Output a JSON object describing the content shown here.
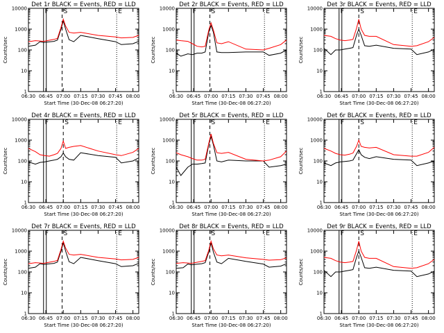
{
  "colors": {
    "events": "#000000",
    "lld": "#ff0000",
    "background": "#ffffff"
  },
  "common": {
    "xlabel": "Start Time (30-Dec-08 06:27:20)",
    "ylabel": "Counts/sec",
    "x_tick_labels": [
      "06:30",
      "06:45",
      "07:00",
      "07:15",
      "07:30",
      "07:45",
      "08:00"
    ],
    "y_tick_labels": [
      "1",
      "10",
      "100",
      "1000",
      "10000"
    ],
    "markers": [
      "F",
      "S",
      "E"
    ]
  },
  "chart_data": [
    {
      "type": "line",
      "title": "Det 1r BLACK = Events, RED = LLD",
      "xlim": [
        "06:30",
        "08:05"
      ],
      "ylim": [
        1,
        10000
      ],
      "yscale": "log",
      "series": [
        {
          "name": "Events",
          "x": [
            "06:30",
            "06:36",
            "06:40",
            "06:43",
            "06:46",
            "06:52",
            "06:55",
            "06:58",
            "07:00",
            "07:02",
            "07:05",
            "07:09",
            "07:15",
            "07:30",
            "07:45",
            "07:50",
            "08:00",
            "08:05"
          ],
          "values": [
            150,
            170,
            250,
            230,
            240,
            260,
            300,
            1000,
            2500,
            1000,
            310,
            250,
            500,
            350,
            250,
            180,
            200,
            260
          ]
        },
        {
          "name": "LLD",
          "x": [
            "06:30",
            "06:36",
            "06:40",
            "06:43",
            "06:46",
            "06:52",
            "06:55",
            "06:58",
            "07:00",
            "07:02",
            "07:05",
            "07:09",
            "07:15",
            "07:30",
            "07:45",
            "07:50",
            "08:00",
            "08:05"
          ],
          "values": [
            250,
            280,
            270,
            260,
            280,
            320,
            360,
            1200,
            3000,
            1400,
            700,
            650,
            700,
            500,
            420,
            380,
            400,
            500
          ]
        }
      ],
      "markers": [
        {
          "label": "F",
          "x": "06:43"
        },
        {
          "label": "S",
          "x": "06:59"
        },
        {
          "label": "E",
          "x": "07:46"
        }
      ]
    },
    {
      "type": "line",
      "title": "Det 2r BLACK = Events, RED = LLD",
      "xlim": [
        "06:30",
        "08:05"
      ],
      "ylim": [
        1,
        10000
      ],
      "yscale": "log",
      "series": [
        {
          "name": "Events",
          "x": [
            "06:30",
            "06:34",
            "06:40",
            "06:44",
            "06:48",
            "06:52",
            "06:55",
            "06:58",
            "07:00",
            "07:02",
            "07:05",
            "07:09",
            "07:15",
            "07:30",
            "07:45",
            "07:50",
            "08:00",
            "08:05"
          ],
          "values": [
            70,
            50,
            65,
            60,
            70,
            70,
            80,
            700,
            1500,
            700,
            80,
            75,
            75,
            80,
            80,
            55,
            70,
            100
          ]
        },
        {
          "name": "LLD",
          "x": [
            "06:30",
            "06:34",
            "06:40",
            "06:44",
            "06:48",
            "06:52",
            "06:55",
            "06:58",
            "07:00",
            "07:02",
            "07:05",
            "07:09",
            "07:15",
            "07:30",
            "07:45",
            "07:50",
            "08:00",
            "08:05"
          ],
          "values": [
            300,
            280,
            260,
            200,
            150,
            140,
            150,
            900,
            2000,
            900,
            220,
            200,
            250,
            110,
            100,
            120,
            180,
            300
          ]
        }
      ],
      "markers": [
        {
          "label": "F",
          "x": "06:43"
        },
        {
          "label": "S",
          "x": "06:59"
        },
        {
          "label": "E",
          "x": "07:46"
        }
      ]
    },
    {
      "type": "line",
      "title": "Det 3r BLACK = Events, RED = LLD",
      "xlim": [
        "06:30",
        "08:05"
      ],
      "ylim": [
        1,
        10000
      ],
      "yscale": "log",
      "series": [
        {
          "name": "Events",
          "x": [
            "06:30",
            "06:36",
            "06:40",
            "06:44",
            "06:48",
            "06:52",
            "06:55",
            "06:58",
            "07:00",
            "07:02",
            "07:05",
            "07:09",
            "07:15",
            "07:30",
            "07:45",
            "07:50",
            "08:00",
            "08:05"
          ],
          "values": [
            120,
            60,
            100,
            100,
            110,
            120,
            130,
            500,
            1000,
            500,
            160,
            150,
            170,
            120,
            110,
            60,
            80,
            110
          ]
        },
        {
          "name": "LLD",
          "x": [
            "06:30",
            "06:36",
            "06:40",
            "06:44",
            "06:48",
            "06:52",
            "06:55",
            "06:58",
            "07:00",
            "07:02",
            "07:05",
            "07:09",
            "07:15",
            "07:30",
            "07:45",
            "07:50",
            "08:00",
            "08:05"
          ],
          "values": [
            500,
            450,
            350,
            300,
            280,
            300,
            320,
            1100,
            3000,
            1000,
            500,
            450,
            450,
            180,
            150,
            160,
            250,
            400
          ]
        }
      ],
      "markers": [
        {
          "label": "F",
          "x": "06:43"
        },
        {
          "label": "S",
          "x": "07:00"
        },
        {
          "label": "E",
          "x": "07:46"
        }
      ]
    },
    {
      "type": "line",
      "title": "Det 4r BLACK = Events, RED = LLD",
      "xlim": [
        "06:30",
        "08:05"
      ],
      "ylim": [
        1,
        10000
      ],
      "yscale": "log",
      "series": [
        {
          "name": "Events",
          "x": [
            "06:30",
            "06:36",
            "06:40",
            "06:44",
            "06:48",
            "06:52",
            "06:55",
            "06:58",
            "07:00",
            "07:02",
            "07:05",
            "07:09",
            "07:15",
            "07:30",
            "07:45",
            "07:50",
            "08:00",
            "08:05"
          ],
          "values": [
            90,
            70,
            85,
            90,
            100,
            110,
            120,
            160,
            240,
            160,
            120,
            110,
            250,
            180,
            150,
            80,
            100,
            140
          ]
        },
        {
          "name": "LLD",
          "x": [
            "06:30",
            "06:36",
            "06:40",
            "06:44",
            "06:48",
            "06:52",
            "06:55",
            "06:58",
            "07:00",
            "07:02",
            "07:05",
            "07:09",
            "07:15",
            "07:30",
            "07:45",
            "07:50",
            "08:00",
            "08:05"
          ],
          "values": [
            400,
            280,
            200,
            180,
            170,
            200,
            230,
            400,
            900,
            400,
            450,
            500,
            550,
            300,
            200,
            180,
            260,
            400
          ]
        }
      ],
      "markers": [
        {
          "label": "F",
          "x": "06:43"
        },
        {
          "label": "S",
          "x": "07:00"
        },
        {
          "label": "E",
          "x": "07:46"
        }
      ]
    },
    {
      "type": "line",
      "title": "Det 5r BLACK = Events, RED = LLD",
      "xlim": [
        "06:30",
        "08:05"
      ],
      "ylim": [
        1,
        10000
      ],
      "yscale": "log",
      "series": [
        {
          "name": "Events",
          "x": [
            "06:30",
            "06:34",
            "06:40",
            "06:44",
            "06:48",
            "06:52",
            "06:55",
            "06:58",
            "07:00",
            "07:02",
            "07:05",
            "07:09",
            "07:15",
            "07:30",
            "07:45",
            "07:50",
            "08:00",
            "08:05"
          ],
          "values": [
            50,
            20,
            50,
            70,
            70,
            75,
            80,
            600,
            1500,
            600,
            100,
            90,
            110,
            100,
            100,
            50,
            60,
            70
          ]
        },
        {
          "name": "LLD",
          "x": [
            "06:30",
            "06:34",
            "06:40",
            "06:44",
            "06:48",
            "06:52",
            "06:55",
            "06:58",
            "07:00",
            "07:02",
            "07:05",
            "07:09",
            "07:15",
            "07:30",
            "07:45",
            "07:50",
            "08:00",
            "08:05"
          ],
          "values": [
            250,
            200,
            160,
            130,
            110,
            110,
            120,
            700,
            2000,
            700,
            250,
            230,
            260,
            120,
            100,
            110,
            160,
            300
          ]
        }
      ],
      "markers": [
        {
          "label": "F",
          "x": "06:43"
        },
        {
          "label": "S",
          "x": "06:59"
        },
        {
          "label": "E",
          "x": "07:46"
        }
      ]
    },
    {
      "type": "line",
      "title": "Det 6r BLACK = Events, RED = LLD",
      "xlim": [
        "06:30",
        "08:05"
      ],
      "ylim": [
        1,
        10000
      ],
      "yscale": "log",
      "series": [
        {
          "name": "Events",
          "x": [
            "06:30",
            "06:36",
            "06:40",
            "06:44",
            "06:48",
            "06:52",
            "06:55",
            "06:58",
            "07:00",
            "07:02",
            "07:05",
            "07:09",
            "07:15",
            "07:30",
            "07:45",
            "07:50",
            "08:00",
            "08:05"
          ],
          "values": [
            80,
            60,
            80,
            90,
            95,
            100,
            110,
            220,
            350,
            200,
            150,
            130,
            160,
            120,
            110,
            60,
            80,
            100
          ]
        },
        {
          "name": "LLD",
          "x": [
            "06:30",
            "06:36",
            "06:40",
            "06:44",
            "06:48",
            "06:52",
            "06:55",
            "06:58",
            "07:00",
            "07:02",
            "07:05",
            "07:09",
            "07:15",
            "07:30",
            "07:45",
            "07:50",
            "08:00",
            "08:05"
          ],
          "values": [
            400,
            300,
            230,
            200,
            190,
            210,
            240,
            500,
            1000,
            500,
            450,
            420,
            450,
            200,
            170,
            170,
            260,
            450
          ]
        }
      ],
      "markers": [
        {
          "label": "F",
          "x": "06:43"
        },
        {
          "label": "S",
          "x": "07:00"
        },
        {
          "label": "E",
          "x": "07:46"
        }
      ]
    },
    {
      "type": "line",
      "title": "Det 7r BLACK = Events, RED = LLD",
      "xlim": [
        "06:30",
        "08:05"
      ],
      "ylim": [
        1,
        10000
      ],
      "yscale": "log",
      "series": [
        {
          "name": "Events",
          "x": [
            "06:30",
            "06:36",
            "06:40",
            "06:43",
            "06:46",
            "06:52",
            "06:55",
            "06:58",
            "07:00",
            "07:02",
            "07:05",
            "07:09",
            "07:15",
            "07:30",
            "07:45",
            "07:50",
            "08:00",
            "08:05"
          ],
          "values": [
            150,
            170,
            250,
            230,
            240,
            260,
            300,
            1000,
            2500,
            1000,
            310,
            250,
            500,
            350,
            250,
            180,
            200,
            260
          ]
        },
        {
          "name": "LLD",
          "x": [
            "06:30",
            "06:36",
            "06:40",
            "06:43",
            "06:46",
            "06:52",
            "06:55",
            "06:58",
            "07:00",
            "07:02",
            "07:05",
            "07:09",
            "07:15",
            "07:30",
            "07:45",
            "07:50",
            "08:00",
            "08:05"
          ],
          "values": [
            250,
            280,
            270,
            260,
            280,
            320,
            360,
            1200,
            3000,
            1400,
            700,
            650,
            700,
            500,
            420,
            380,
            400,
            500
          ]
        }
      ],
      "markers": [
        {
          "label": "F",
          "x": "06:43"
        },
        {
          "label": "S",
          "x": "06:59"
        },
        {
          "label": "E",
          "x": "07:46"
        }
      ]
    },
    {
      "type": "line",
      "title": "Det 8r BLACK = Events, RED = LLD",
      "xlim": [
        "06:30",
        "08:05"
      ],
      "ylim": [
        1,
        10000
      ],
      "yscale": "log",
      "series": [
        {
          "name": "Events",
          "x": [
            "06:30",
            "06:36",
            "06:40",
            "06:43",
            "06:46",
            "06:52",
            "06:55",
            "06:58",
            "07:00",
            "07:02",
            "07:05",
            "07:09",
            "07:15",
            "07:30",
            "07:45",
            "07:50",
            "08:00",
            "08:05"
          ],
          "values": [
            150,
            160,
            240,
            220,
            230,
            250,
            280,
            900,
            2500,
            900,
            300,
            250,
            450,
            320,
            240,
            170,
            190,
            250
          ]
        },
        {
          "name": "LLD",
          "x": [
            "06:30",
            "06:36",
            "06:40",
            "06:43",
            "06:46",
            "06:52",
            "06:55",
            "06:58",
            "07:00",
            "07:02",
            "07:05",
            "07:09",
            "07:15",
            "07:30",
            "07:45",
            "07:50",
            "08:00",
            "08:05"
          ],
          "values": [
            260,
            280,
            270,
            260,
            280,
            320,
            350,
            1100,
            3000,
            1300,
            650,
            600,
            650,
            480,
            400,
            370,
            390,
            480
          ]
        }
      ],
      "markers": [
        {
          "label": "F",
          "x": "06:43"
        },
        {
          "label": "S",
          "x": "06:59"
        },
        {
          "label": "E",
          "x": "07:46"
        }
      ]
    },
    {
      "type": "line",
      "title": "Det 9r BLACK = Events, RED = LLD",
      "xlim": [
        "06:30",
        "08:05"
      ],
      "ylim": [
        1,
        10000
      ],
      "yscale": "log",
      "series": [
        {
          "name": "Events",
          "x": [
            "06:30",
            "06:36",
            "06:40",
            "06:44",
            "06:48",
            "06:52",
            "06:55",
            "06:58",
            "07:00",
            "07:02",
            "07:05",
            "07:09",
            "07:15",
            "07:30",
            "07:45",
            "07:50",
            "08:00",
            "08:05"
          ],
          "values": [
            120,
            60,
            100,
            100,
            110,
            120,
            130,
            500,
            1000,
            500,
            160,
            150,
            170,
            120,
            110,
            60,
            80,
            110
          ]
        },
        {
          "name": "LLD",
          "x": [
            "06:30",
            "06:36",
            "06:40",
            "06:44",
            "06:48",
            "06:52",
            "06:55",
            "06:58",
            "07:00",
            "07:02",
            "07:05",
            "07:09",
            "07:15",
            "07:30",
            "07:45",
            "07:50",
            "08:00",
            "08:05"
          ],
          "values": [
            500,
            450,
            350,
            300,
            280,
            300,
            320,
            1100,
            3000,
            1000,
            500,
            450,
            450,
            180,
            150,
            160,
            250,
            400
          ]
        }
      ],
      "markers": [
        {
          "label": "F",
          "x": "06:43"
        },
        {
          "label": "S",
          "x": "07:00"
        },
        {
          "label": "E",
          "x": "07:46"
        }
      ]
    }
  ]
}
